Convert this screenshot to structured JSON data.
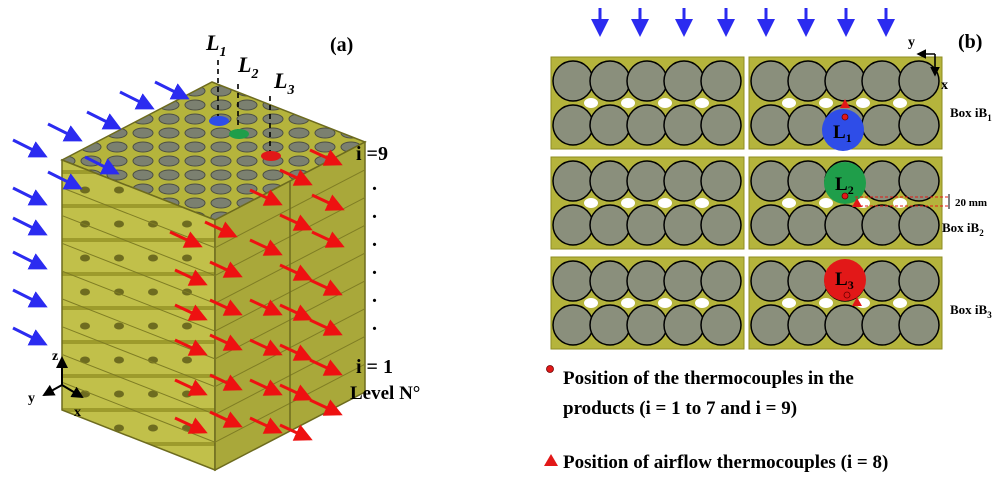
{
  "panel_a": {
    "label": "(a)",
    "level_lines": [
      {
        "name": "L",
        "sub": "1"
      },
      {
        "name": "L",
        "sub": "2"
      },
      {
        "name": "L",
        "sub": "3"
      }
    ],
    "level_top": "i =9",
    "level_bottom": "i = 1",
    "level_caption": "Level N°",
    "axes": {
      "z": "z",
      "y": "y",
      "x": "x"
    }
  },
  "panel_b": {
    "label": "(b)",
    "axes": {
      "y": "y",
      "x": "x"
    },
    "boxes": [
      {
        "prefix": "Box iB",
        "sub": "1"
      },
      {
        "prefix": "Box iB",
        "sub": "2"
      },
      {
        "prefix": "Box iB",
        "sub": "3"
      }
    ],
    "markers": [
      {
        "name": "L",
        "sub": "1"
      },
      {
        "name": "L",
        "sub": "2"
      },
      {
        "name": "L",
        "sub": "3"
      }
    ],
    "dimension": "20 mm"
  },
  "legend": {
    "products_line1": "Position of the thermocouples in the",
    "products_line2": "products (i = 1 to 7 and i = 9)",
    "airflow": "Position of airflow thermocouples (i = 8)"
  },
  "colors": {
    "box": "#b5b43c",
    "box_dark": "#8e8c22",
    "product": "#8a8f7c",
    "airflow_in": "#2b2bf0",
    "airflow_out": "#ee1111",
    "l1": "#2e4de8",
    "l2": "#1f9e4a",
    "l3": "#e21818"
  }
}
